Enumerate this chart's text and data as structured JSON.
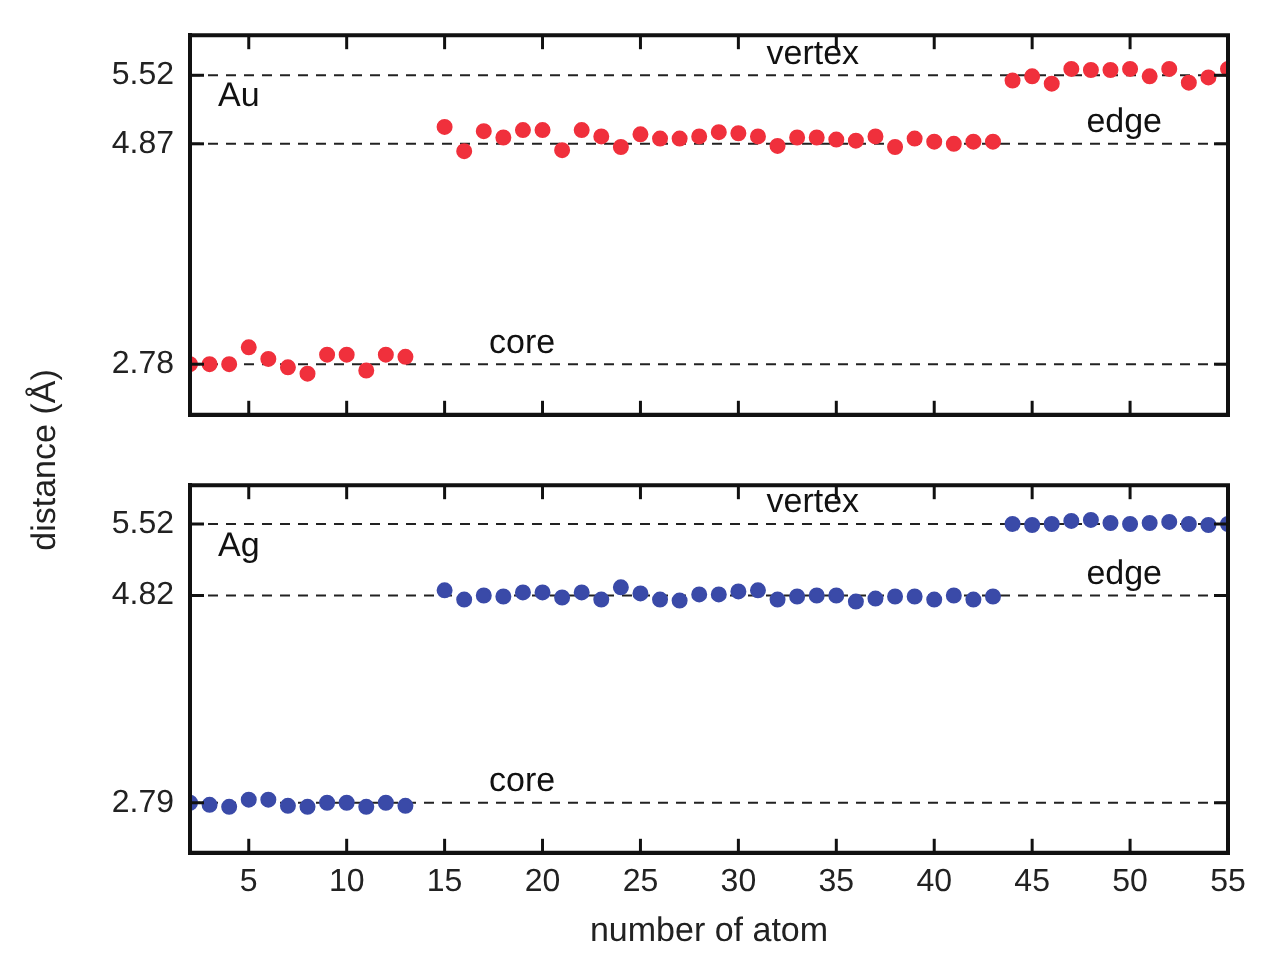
{
  "chart_data": [
    {
      "type": "scatter",
      "ylabel": "distance (Å)",
      "annotations": [
        "Au"
      ],
      "marker": "circle",
      "grid": false,
      "tick_labels": "y",
      "xlim": [
        2,
        55
      ],
      "xticks": [
        5,
        10,
        15,
        20,
        25,
        30,
        35,
        40,
        45,
        50,
        55
      ],
      "ylim": [
        2.3,
        5.9
      ],
      "yticks": [
        2.78,
        4.87,
        5.52
      ],
      "ref_lines": [
        {
          "axis": "y",
          "value": 2.78,
          "label": "core",
          "line_style": "dashed"
        },
        {
          "axis": "y",
          "value": 4.87,
          "label": "edge",
          "line_style": "dashed"
        },
        {
          "axis": "y",
          "value": 5.52,
          "label": "vertex",
          "line_style": "dashed"
        }
      ],
      "series": [
        {
          "color": "#f0303c",
          "x": [
            2,
            3,
            4,
            5,
            6,
            7,
            8,
            9,
            10,
            11,
            12,
            13,
            15,
            16,
            17,
            18,
            19,
            20,
            21,
            22,
            23,
            24,
            25,
            26,
            27,
            28,
            29,
            30,
            31,
            32,
            33,
            34,
            35,
            36,
            37,
            38,
            39,
            40,
            41,
            42,
            43,
            44,
            45,
            46,
            47,
            48,
            49,
            50,
            51,
            52,
            53,
            54,
            55
          ],
          "values": [
            2.78,
            2.78,
            2.78,
            2.94,
            2.83,
            2.75,
            2.69,
            2.87,
            2.87,
            2.72,
            2.87,
            2.85,
            5.03,
            4.8,
            4.99,
            4.93,
            5.0,
            5.0,
            4.81,
            5.0,
            4.94,
            4.84,
            4.96,
            4.92,
            4.92,
            4.94,
            4.98,
            4.97,
            4.94,
            4.85,
            4.93,
            4.93,
            4.91,
            4.9,
            4.94,
            4.84,
            4.92,
            4.89,
            4.87,
            4.89,
            4.89,
            5.47,
            5.51,
            5.44,
            5.58,
            5.57,
            5.57,
            5.58,
            5.51,
            5.58,
            5.45,
            5.5,
            5.58
          ]
        }
      ]
    },
    {
      "type": "scatter",
      "xlabel": "number of atom",
      "annotations": [
        "Ag"
      ],
      "marker": "circle",
      "grid": false,
      "xlim": [
        2,
        55
      ],
      "xticks": [
        5,
        10,
        15,
        20,
        25,
        30,
        35,
        40,
        45,
        50,
        55
      ],
      "ylim": [
        2.3,
        5.9
      ],
      "yticks": [
        2.79,
        4.82,
        5.52
      ],
      "ref_lines": [
        {
          "axis": "y",
          "value": 2.79,
          "label": "core",
          "line_style": "dashed"
        },
        {
          "axis": "y",
          "value": 4.82,
          "label": "edge",
          "line_style": "dashed"
        },
        {
          "axis": "y",
          "value": 5.52,
          "label": "vertex",
          "line_style": "dashed"
        }
      ],
      "series": [
        {
          "color": "#3a4aa8",
          "x": [
            2,
            3,
            4,
            5,
            6,
            7,
            8,
            9,
            10,
            11,
            12,
            13,
            15,
            16,
            17,
            18,
            19,
            20,
            21,
            22,
            23,
            24,
            25,
            26,
            27,
            28,
            29,
            30,
            31,
            32,
            33,
            34,
            35,
            36,
            37,
            38,
            39,
            40,
            41,
            42,
            43,
            44,
            45,
            46,
            47,
            48,
            49,
            50,
            51,
            52,
            53,
            54,
            55
          ],
          "values": [
            2.79,
            2.77,
            2.75,
            2.82,
            2.82,
            2.76,
            2.75,
            2.79,
            2.79,
            2.75,
            2.79,
            2.76,
            4.87,
            4.78,
            4.82,
            4.81,
            4.85,
            4.85,
            4.8,
            4.85,
            4.78,
            4.9,
            4.84,
            4.78,
            4.77,
            4.83,
            4.83,
            4.86,
            4.87,
            4.78,
            4.81,
            4.82,
            4.82,
            4.76,
            4.79,
            4.81,
            4.81,
            4.78,
            4.82,
            4.78,
            4.81,
            5.52,
            5.51,
            5.52,
            5.55,
            5.56,
            5.53,
            5.52,
            5.53,
            5.54,
            5.52,
            5.51,
            5.52
          ]
        }
      ]
    }
  ]
}
